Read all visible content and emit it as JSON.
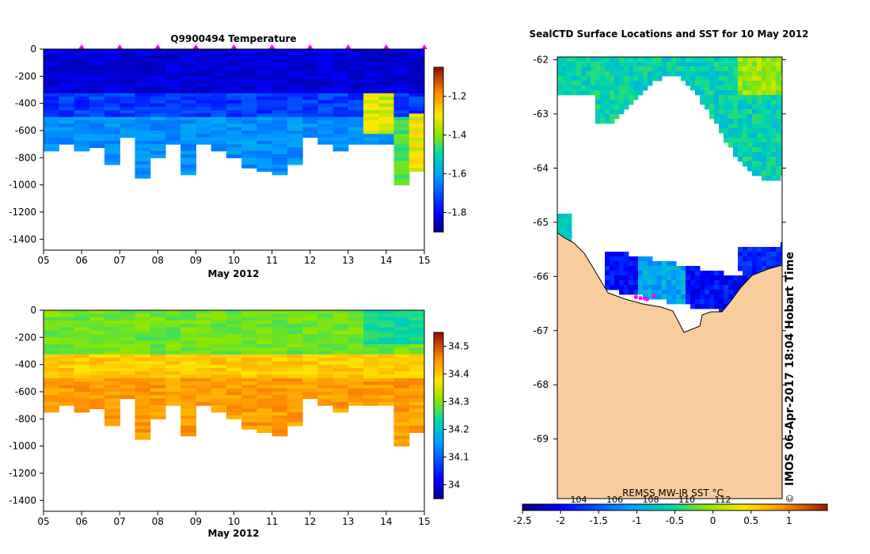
{
  "chart_data": [
    {
      "type": "heatmap",
      "title": "Q9900494  Temperature",
      "xlabel": "May 2012",
      "ylabel": "",
      "x_ticks": [
        "05",
        "06",
        "07",
        "08",
        "09",
        "10",
        "11",
        "12",
        "13",
        "14",
        "15"
      ],
      "x_range": [
        5,
        15
      ],
      "y_ticks": [
        0,
        -200,
        -400,
        -600,
        -800,
        -1000,
        -1200,
        -1400
      ],
      "y_range": [
        -1480,
        0
      ],
      "colorbar": {
        "ticks": [
          -1.2,
          -1.4,
          -1.6,
          -1.8
        ],
        "range": [
          -1.9,
          -1.05
        ]
      },
      "surface_markers_x": [
        6,
        7,
        8,
        9,
        10,
        11,
        12,
        13,
        14,
        15
      ],
      "profile_max_depth": [
        -750,
        -700,
        -730,
        -720,
        -850,
        -650,
        -930,
        -780,
        -700,
        -920,
        -700,
        -750,
        -780,
        -860,
        -890,
        -910,
        -840,
        -650,
        -700,
        -750,
        -700,
        -700,
        -700,
        -1000,
        -890
      ],
      "cell_values_note": "cold -1.85 near 0..-400 m, warming to -1.6 below; warm anomaly -1.25 near -500 m on May 14-15"
    },
    {
      "type": "heatmap",
      "title": "",
      "xlabel": "May 2012",
      "ylabel": "",
      "x_ticks": [
        "05",
        "06",
        "07",
        "08",
        "09",
        "10",
        "11",
        "12",
        "13",
        "14",
        "15"
      ],
      "x_range": [
        5,
        15
      ],
      "y_ticks": [
        0,
        -200,
        -400,
        -600,
        -800,
        -1000,
        -1200,
        -1400
      ],
      "y_range": [
        -1480,
        0
      ],
      "colorbar": {
        "ticks": [
          34.5,
          34.4,
          34.3,
          34.2,
          34.1,
          34
        ],
        "range": [
          33.95,
          34.55
        ]
      },
      "cell_values_note": "salinity 34.25-34.3 in upper 300 m, rising to 34.4-34.45 below 400 m"
    },
    {
      "type": "map",
      "title": "SealCTD Surface Locations and SST for 10 May 2012",
      "y_ticks": [
        -62,
        -63,
        -64,
        -65,
        -66,
        -67,
        -68,
        -69
      ],
      "y_range": [
        -70.1,
        -61.95
      ],
      "colorbar_label": "REMSS MW-IR SST °C",
      "colorbar_ticks": [
        -2.5,
        -2,
        -1.5,
        -1,
        -0.5,
        0,
        0.5,
        1
      ],
      "colorbar_upper_ticks": [
        "104",
        "106",
        "108",
        "110",
        "112"
      ],
      "colorbar_range": [
        -2.5,
        1.5
      ],
      "credit": "IMOS 06-Apr-2017 18:04 Hobart Time",
      "copyright": "©",
      "seal_locations": [
        {
          "lon": 0.35,
          "lat": -66.38
        },
        {
          "lon": 0.37,
          "lat": -66.4
        },
        {
          "lon": 0.39,
          "lat": -66.41
        },
        {
          "lon": 0.4,
          "lat": -66.42
        },
        {
          "lon": 0.43,
          "lat": -66.36
        }
      ]
    }
  ]
}
